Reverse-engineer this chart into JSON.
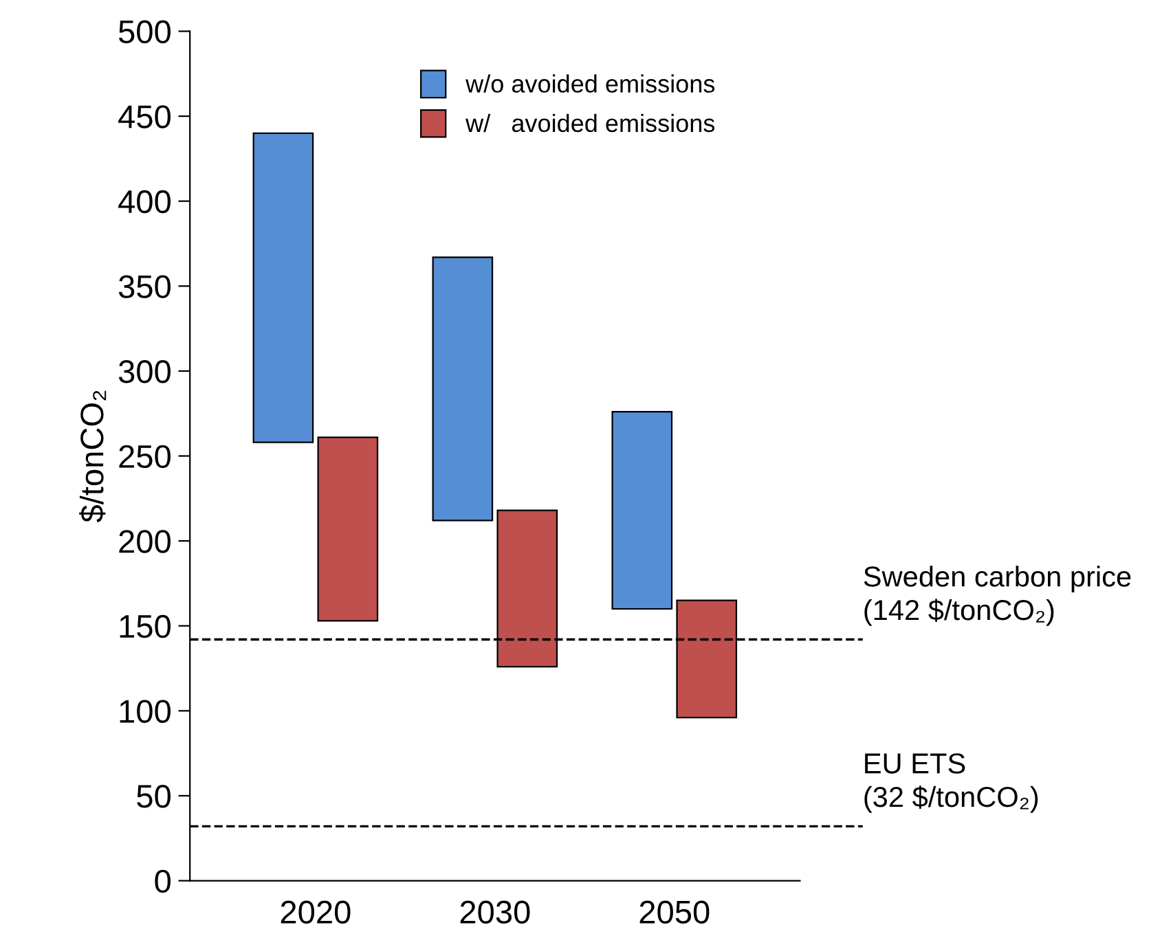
{
  "chart_data": {
    "type": "bar",
    "ylabel": "$/tonCO₂",
    "categories": [
      "2020",
      "2030",
      "2050"
    ],
    "series": [
      {
        "name": "w/o avoided emissions",
        "color": "#558ed5",
        "base": [
          258,
          212,
          160
        ],
        "values": [
          182,
          155,
          116
        ]
      },
      {
        "name": "w/   avoided emissions",
        "color": "#c0504d",
        "base": [
          153,
          126,
          96
        ],
        "values": [
          108,
          92,
          69
        ]
      }
    ],
    "ylim": [
      0,
      500
    ],
    "yticks": [
      0,
      50,
      100,
      150,
      200,
      250,
      300,
      350,
      400,
      450,
      500
    ],
    "ref_lines": [
      {
        "axis": "y",
        "value": 142,
        "label": "Sweden carbon price\n(142 $/tonCO₂)",
        "color": "#000000",
        "line_style": "dashed"
      },
      {
        "axis": "y",
        "value": 32,
        "label": "EU ETS\n(32 $/tonCO₂)",
        "color": "#000000",
        "line_style": "dashed"
      }
    ],
    "grid": false,
    "legend": "top"
  }
}
